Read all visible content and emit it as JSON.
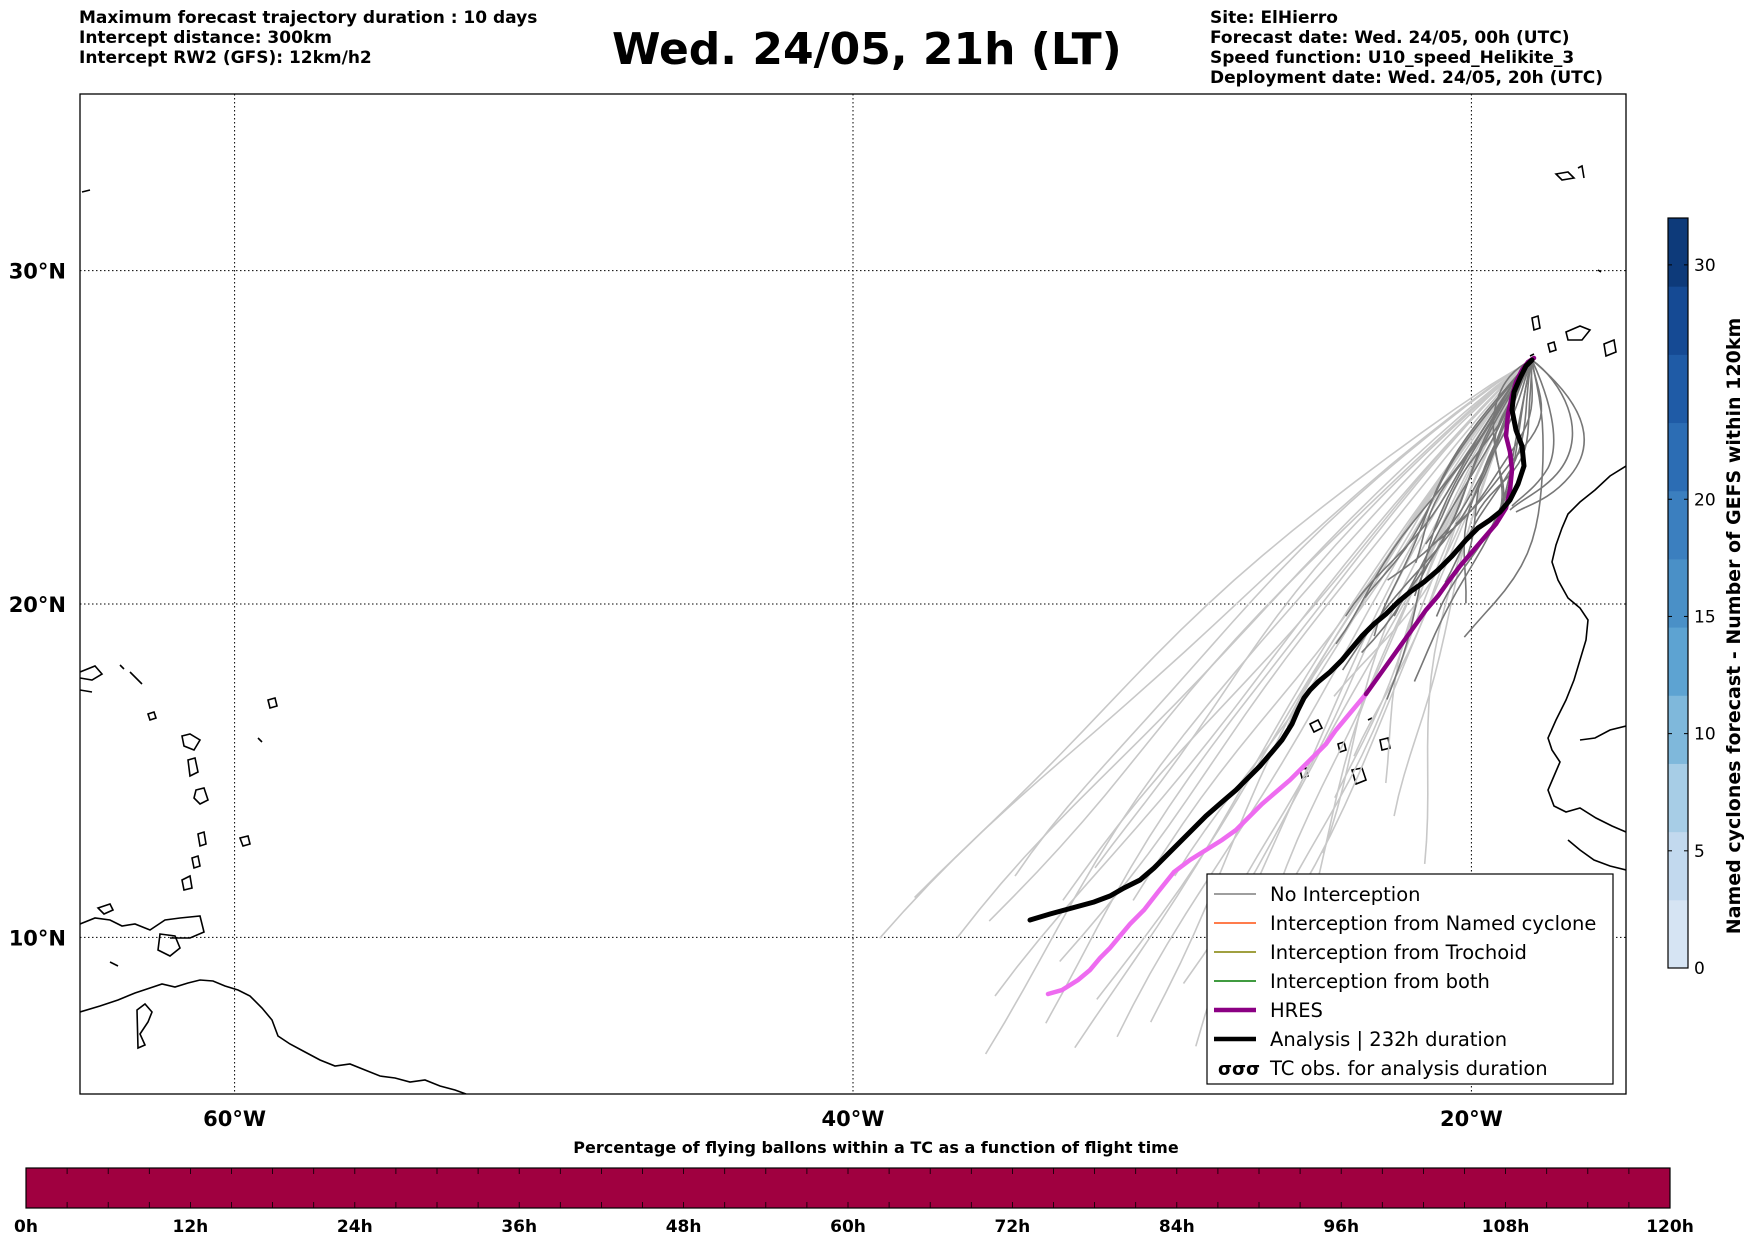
{
  "header": {
    "left_lines": [
      "Maximum forecast trajectory duration : 10 days",
      "Intercept distance: 300km",
      "Intercept RW2 (GFS):  12km/h2"
    ],
    "title": "Wed. 24/05, 21h (LT)",
    "right_lines": [
      "Site: ElHierro",
      "Forecast date: Wed. 24/05, 00h (UTC)",
      "Speed function: U10_speed_Helikite_3",
      "Deployment date: Wed. 24/05, 20h (UTC)"
    ]
  },
  "map": {
    "lat_labels": [
      "30°N",
      "20°N",
      "10°N"
    ],
    "lon_labels": [
      "60°W",
      "40°W",
      "20°W"
    ],
    "lat_lines": [
      30,
      20,
      10
    ],
    "lon_lines": [
      -60,
      -40,
      -20
    ],
    "extent": {
      "lon_min": -65,
      "lon_max": -15,
      "lat_min": 5.3,
      "lat_max": 35.3
    },
    "colors": {
      "ensemble_light": "#c8c8c8",
      "ensemble_dark": "#777777",
      "hres": "#8b0083",
      "hres_extension": "#ee6cf0",
      "analysis": "#000000"
    },
    "legend": {
      "items": [
        {
          "label": "No Interception",
          "color": "#7f7f7f",
          "style": "thin"
        },
        {
          "label": "Interception from Named cyclone",
          "color": "#ff5010",
          "style": "thin"
        },
        {
          "label": "Interception from Trochoid",
          "color": "#808000",
          "style": "thin"
        },
        {
          "label": "Interception from both",
          "color": "#007a00",
          "style": "thin"
        },
        {
          "label": "HRES",
          "color": "#8b0083",
          "style": "thick"
        },
        {
          "label": "Analysis | 232h duration",
          "color": "#000000",
          "style": "thick"
        },
        {
          "label": "TC obs. for analysis duration",
          "color": "#000000",
          "style": "symbol",
          "symbol_icon": "cyclone-symbol-icon"
        }
      ]
    }
  },
  "colorbar_right": {
    "label": "Named cyclones forecast - Number of GEFS within 120km",
    "ticks": [
      0,
      5,
      10,
      15,
      20,
      30
    ],
    "max": 32,
    "colors_light_to_dark": [
      "#d6e4f3",
      "#c2d9ee",
      "#a7cde6",
      "#7fb8db",
      "#5da3d2",
      "#4a90c7",
      "#3b7fbf",
      "#2c6db4",
      "#1f5ba6",
      "#154a94",
      "#0d3a7a"
    ]
  },
  "colorbar_bottom": {
    "title": "Percentage of flying ballons within a TC as a function of flight time",
    "tick_labels": [
      "0h",
      "12h",
      "24h",
      "36h",
      "48h",
      "60h",
      "72h",
      "84h",
      "96h",
      "108h",
      "120h"
    ],
    "fill_color": "#a00040",
    "segments": 40
  }
}
